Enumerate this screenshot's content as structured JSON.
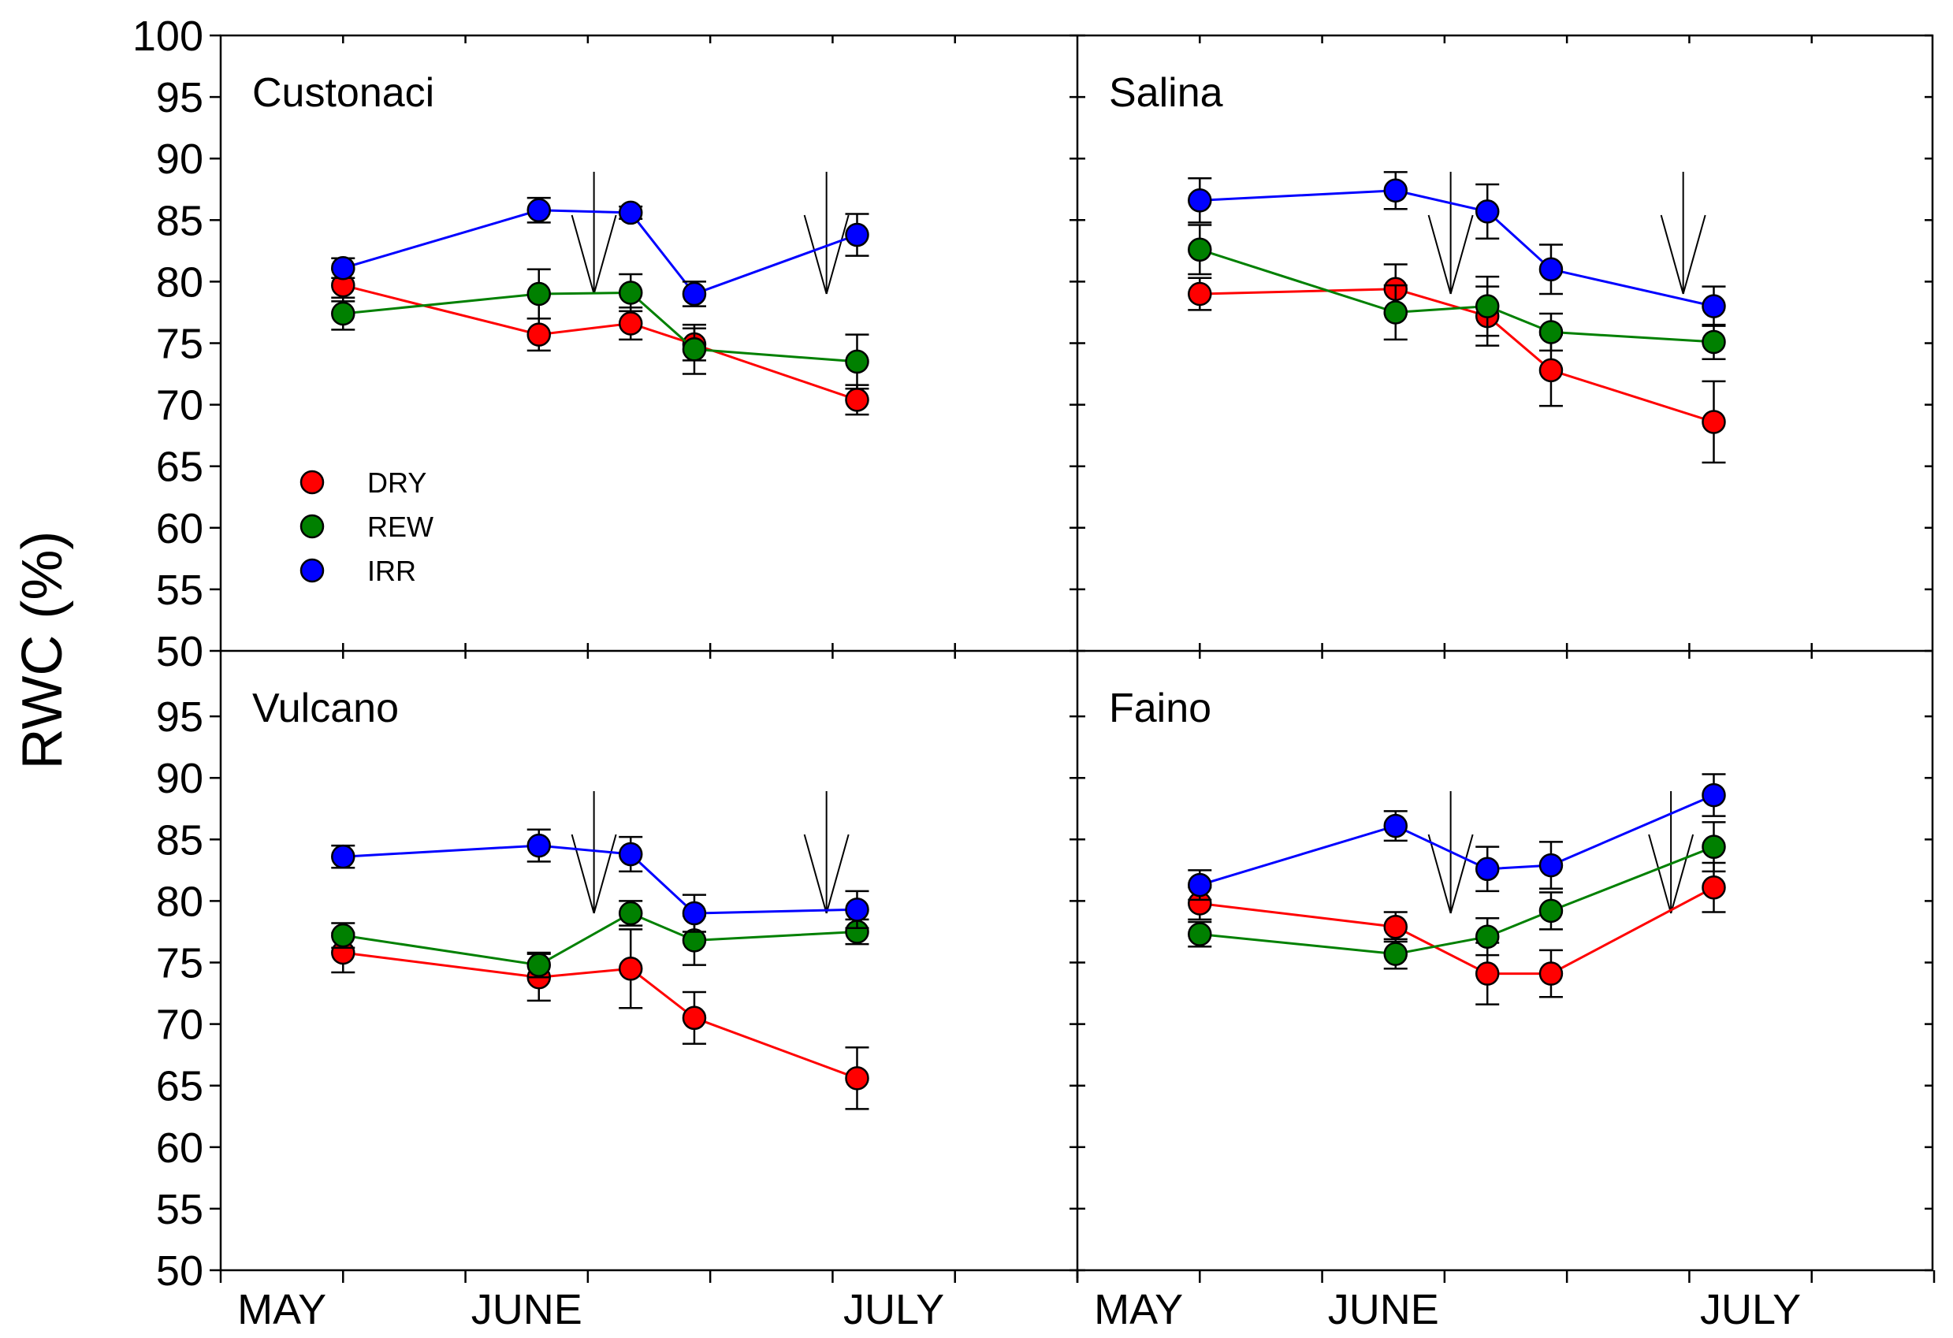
{
  "chart_data": {
    "type": "line",
    "ylabel": "RWC (%)",
    "ylim": [
      50,
      100
    ],
    "yticks_top": [
      50,
      55,
      60,
      65,
      70,
      75,
      80,
      85,
      90,
      95,
      100
    ],
    "yticks_bottom": [
      50,
      55,
      60,
      65,
      70,
      75,
      80,
      85,
      90,
      95
    ],
    "x_domain": [
      0,
      7
    ],
    "month_labels": [
      {
        "label": "MAY",
        "x": 0.5
      },
      {
        "label": "JUNE",
        "x": 2.5
      },
      {
        "label": "JULY",
        "x": 5.5
      }
    ],
    "series_colors": {
      "DRY": "#ff0000",
      "REW": "#008000",
      "IRR": "#0000ff"
    },
    "legend": [
      {
        "name": "DRY",
        "color": "#ff0000"
      },
      {
        "name": "REW",
        "color": "#008000"
      },
      {
        "name": "IRR",
        "color": "#0000ff"
      }
    ],
    "panels": [
      {
        "title": "Custonaci",
        "x": [
          1,
          2.6,
          3.35,
          3.87,
          5.2
        ],
        "series": [
          {
            "name": "DRY",
            "values": [
              79.7,
              75.7,
              76.6,
              74.9,
              70.4
            ],
            "errors": [
              1.3,
              1.3,
              1.3,
              1.3,
              1.2
            ]
          },
          {
            "name": "REW",
            "values": [
              77.4,
              79.0,
              79.1,
              74.5,
              73.5
            ],
            "errors": [
              1.3,
              2.0,
              1.5,
              2.0,
              2.2
            ]
          },
          {
            "name": "IRR",
            "values": [
              81.1,
              85.8,
              85.6,
              79.0,
              83.8
            ],
            "errors": [
              0.8,
              1.0,
              0.5,
              1.0,
              1.7
            ]
          }
        ],
        "arrows": [
          3.05,
          4.95
        ]
      },
      {
        "title": "Salina",
        "x": [
          1,
          2.6,
          3.35,
          3.87,
          5.2
        ],
        "series": [
          {
            "name": "DRY",
            "values": [
              79.0,
              79.4,
              77.2,
              72.8,
              68.6
            ],
            "errors": [
              1.3,
              2.0,
              2.4,
              2.9,
              3.3
            ]
          },
          {
            "name": "REW",
            "values": [
              82.6,
              77.5,
              78.0,
              75.9,
              75.1
            ],
            "errors": [
              2.0,
              2.2,
              2.4,
              1.5,
              1.4
            ]
          },
          {
            "name": "IRR",
            "values": [
              86.6,
              87.4,
              85.7,
              81.0,
              78.0
            ],
            "errors": [
              1.8,
              1.5,
              2.2,
              2.0,
              1.6
            ]
          }
        ],
        "arrows": [
          3.05,
          4.95
        ]
      },
      {
        "title": "Vulcano",
        "x": [
          1,
          2.6,
          3.35,
          3.87,
          5.2
        ],
        "series": [
          {
            "name": "DRY",
            "values": [
              75.8,
              73.8,
              74.5,
              70.5,
              65.6
            ],
            "errors": [
              1.6,
              1.9,
              3.2,
              2.1,
              2.5
            ]
          },
          {
            "name": "REW",
            "values": [
              77.2,
              74.8,
              79.0,
              76.8,
              77.5
            ],
            "errors": [
              1.0,
              1.0,
              1.0,
              2.0,
              1.0
            ]
          },
          {
            "name": "IRR",
            "values": [
              83.6,
              84.5,
              83.8,
              79.0,
              79.3
            ],
            "errors": [
              0.9,
              1.3,
              1.4,
              1.5,
              1.5
            ]
          }
        ],
        "arrows": [
          3.05,
          4.95
        ]
      },
      {
        "title": "Faino",
        "x": [
          1,
          2.6,
          3.35,
          3.87,
          5.2
        ],
        "series": [
          {
            "name": "DRY",
            "values": [
              79.8,
              77.9,
              74.1,
              74.1,
              81.1
            ],
            "errors": [
              1.3,
              1.2,
              2.5,
              1.9,
              2.0
            ]
          },
          {
            "name": "REW",
            "values": [
              77.3,
              75.7,
              77.1,
              79.2,
              84.4
            ],
            "errors": [
              1.0,
              1.2,
              1.5,
              1.5,
              2.0
            ]
          },
          {
            "name": "IRR",
            "values": [
              81.3,
              86.1,
              82.6,
              82.9,
              88.6
            ],
            "errors": [
              1.2,
              1.2,
              1.8,
              1.9,
              1.7
            ]
          }
        ],
        "arrows": [
          3.05,
          4.85
        ]
      }
    ]
  }
}
